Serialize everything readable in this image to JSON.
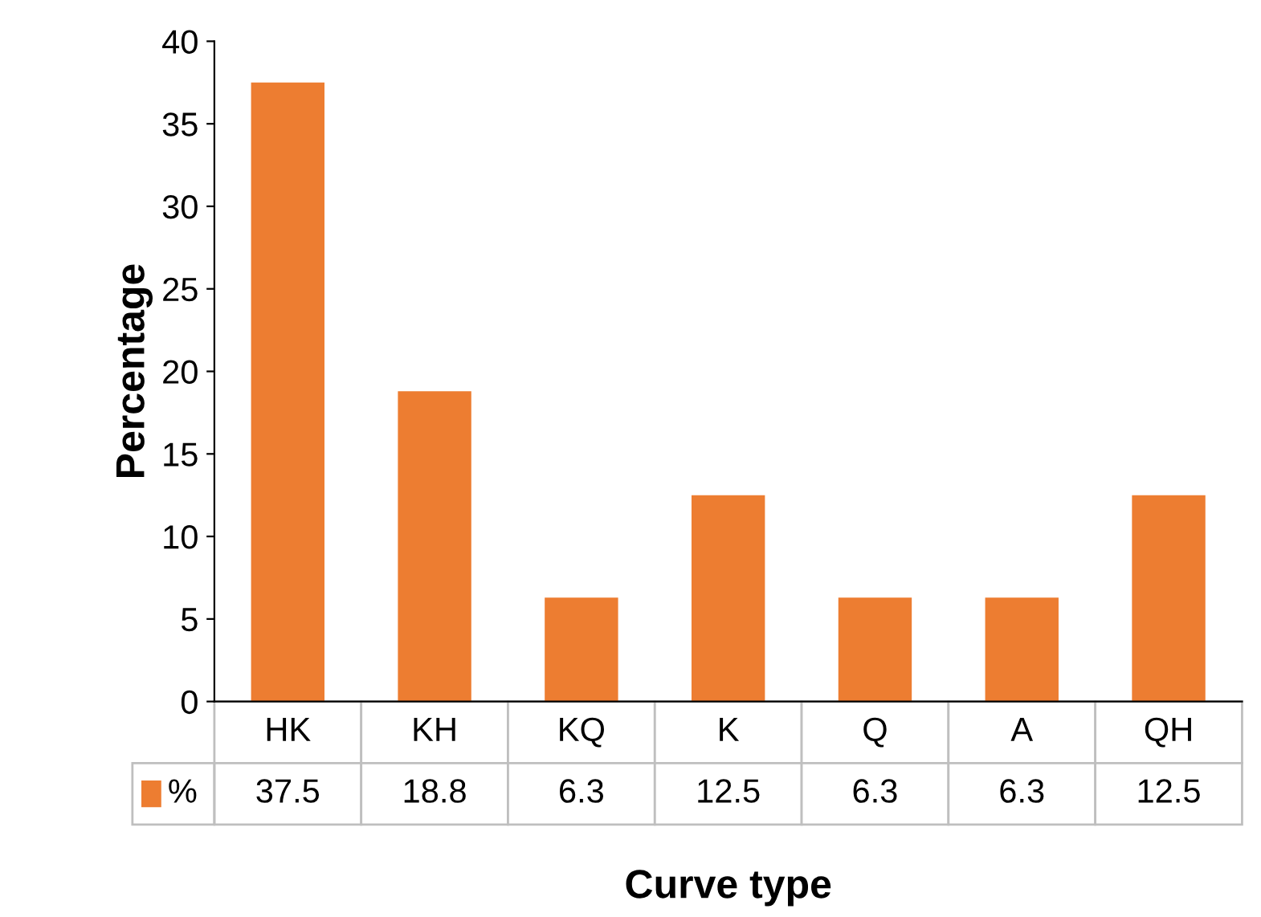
{
  "chart_data": {
    "type": "bar",
    "xlabel": "Curve type",
    "ylabel": "Percentage",
    "categories": [
      "HK",
      "KH",
      "KQ",
      "K",
      "Q",
      "A",
      "QH"
    ],
    "series": [
      {
        "name": "%",
        "color": "#ed7d31",
        "values": [
          37.5,
          18.8,
          6.3,
          12.5,
          6.3,
          6.3,
          12.5
        ]
      }
    ],
    "ylim": [
      0,
      40
    ],
    "yticks": [
      0,
      5,
      10,
      15,
      20,
      25,
      30,
      35,
      40
    ],
    "grid": false,
    "legend": "bottom",
    "data_labels": true
  }
}
